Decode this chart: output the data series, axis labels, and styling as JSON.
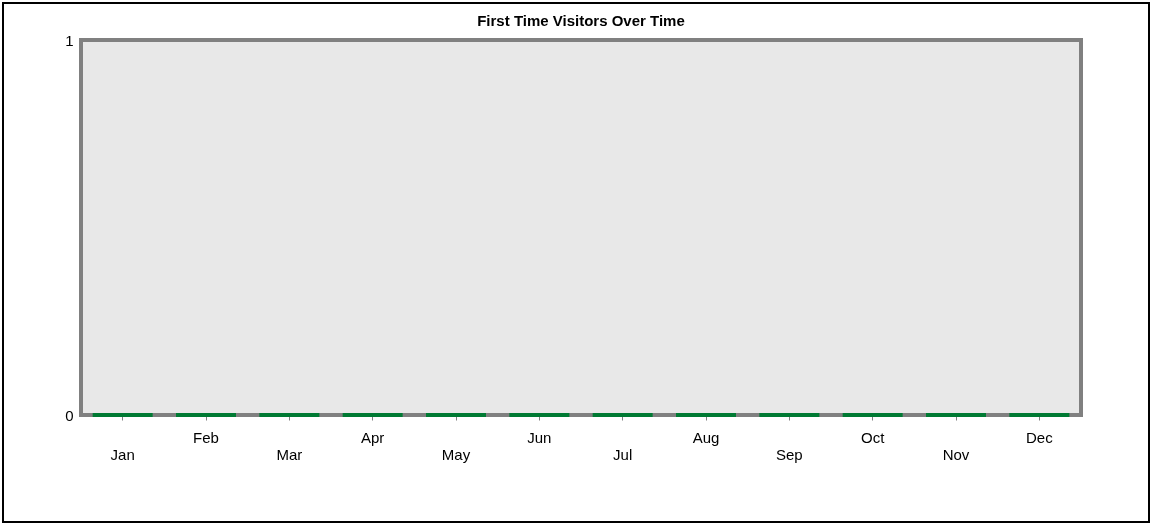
{
  "chart_data": {
    "type": "bar",
    "title": "First Time Visitors Over Time",
    "categories": [
      "Jan",
      "Feb",
      "Mar",
      "Apr",
      "May",
      "Jun",
      "Jul",
      "Aug",
      "Sep",
      "Oct",
      "Nov",
      "Dec"
    ],
    "values": [
      0,
      0,
      0,
      0,
      0,
      0,
      0,
      0,
      0,
      0,
      0,
      0
    ],
    "color": "#007a33",
    "ylim": [
      0,
      1
    ],
    "yticks": [
      0,
      1
    ],
    "grid": false
  }
}
